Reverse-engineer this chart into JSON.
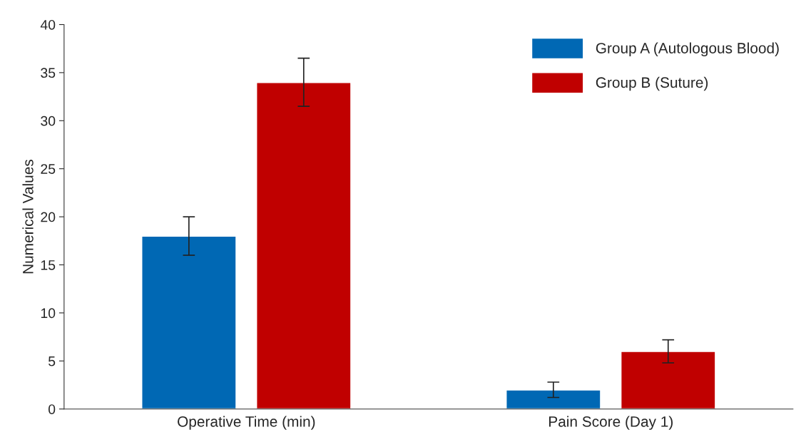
{
  "chart_data": {
    "type": "bar",
    "ylabel": "Numerical Values",
    "categories": [
      "Operative Time (min)",
      "Pain Score (Day 1)"
    ],
    "series": [
      {
        "name": "Group A (Autologous Blood)",
        "color": "#0068b4",
        "values": [
          18,
          2
        ],
        "errors": [
          2,
          0.8
        ]
      },
      {
        "name": "Group B (Suture)",
        "color": "#c00000",
        "values": [
          34,
          6
        ],
        "errors": [
          2.5,
          1.2
        ]
      }
    ],
    "ylim": [
      0,
      40
    ],
    "yticks": [
      0,
      5,
      10,
      15,
      20,
      25,
      30,
      35,
      40
    ],
    "grid": false,
    "legend": "top right"
  }
}
